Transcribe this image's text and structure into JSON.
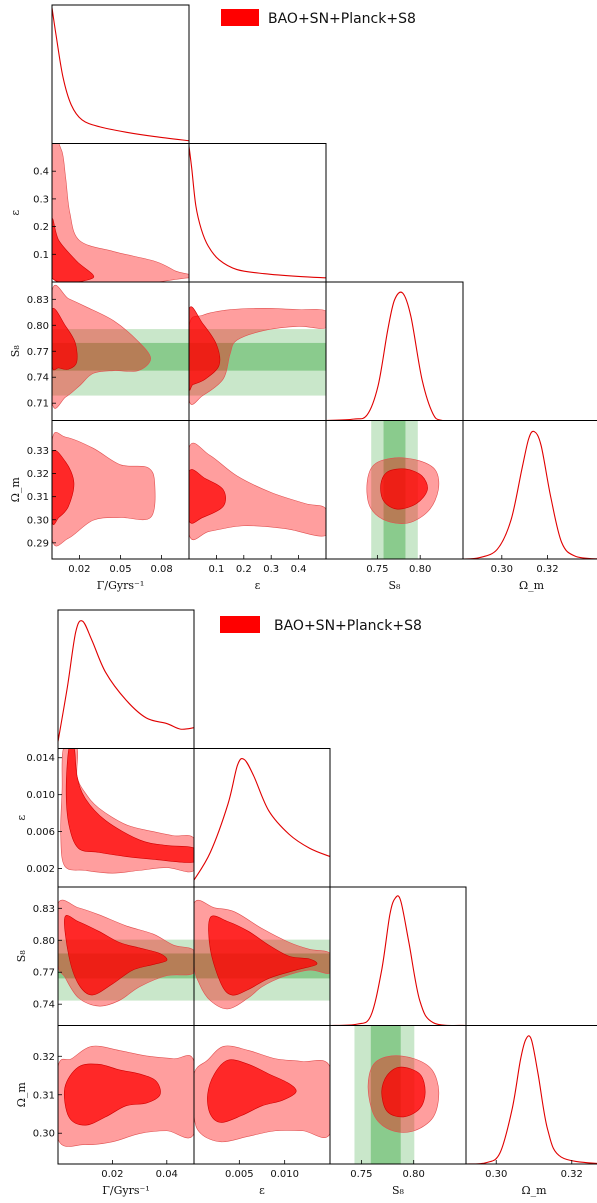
{
  "chart_data": [
    {
      "type": "corner",
      "legend": {
        "label": "BAO+SN+Planck+S8",
        "color": "#ff0000"
      },
      "parameters": [
        {
          "name": "Gamma",
          "label": "Γ/Gyrs⁻¹",
          "range": [
            0.0,
            0.1
          ],
          "ticks": [
            0.02,
            0.05,
            0.08
          ],
          "tick_labels": [
            "0.02",
            "0.05",
            "0.08"
          ]
        },
        {
          "name": "epsilon",
          "label": "ε",
          "range": [
            0.0,
            0.5
          ],
          "ticks": [
            0.1,
            0.2,
            0.3,
            0.4
          ],
          "tick_labels": [
            "0.1",
            "0.2",
            "0.3",
            "0.4"
          ]
        },
        {
          "name": "S8",
          "label": "S₈",
          "range": [
            0.69,
            0.85
          ],
          "ticks": [
            0.71,
            0.74,
            0.77,
            0.8,
            0.83
          ],
          "tick_labels": [
            "0.71",
            "0.74",
            "0.77",
            "0.80",
            "0.83"
          ]
        },
        {
          "name": "Omega_m",
          "label": "Ω_m",
          "range": [
            0.283,
            0.343
          ],
          "ticks": [
            0.29,
            0.3,
            0.31,
            0.32,
            0.33
          ],
          "tick_labels": [
            "0.29",
            "0.30",
            "0.31",
            "0.32",
            "0.33"
          ]
        }
      ],
      "s8_prior": {
        "mean": 0.766,
        "sigma1": [
          0.752,
          0.781
        ],
        "sigma2": [
          0.738,
          0.795
        ]
      },
      "bottom_tick_labels": [
        [
          "0.02",
          "0.05",
          "0.08"
        ],
        [
          "0.1",
          "0.2",
          "0.3",
          "0.4"
        ],
        [
          "0.75",
          "0.80"
        ],
        [
          "0.30",
          "0.32"
        ]
      ],
      "bottom_ticks": [
        [
          0.02,
          0.05,
          0.08
        ],
        [
          0.1,
          0.2,
          0.3,
          0.4
        ],
        [
          0.75,
          0.8
        ],
        [
          0.3,
          0.32
        ]
      ]
    },
    {
      "type": "corner",
      "legend": {
        "label": "BAO+SN+Planck+S8",
        "color": "#ff0000"
      },
      "parameters": [
        {
          "name": "Gamma",
          "label": "Γ/Gyrs⁻¹",
          "range": [
            0.0,
            0.05
          ],
          "ticks": [
            0.02,
            0.04
          ],
          "tick_labels": [
            "0.02",
            "0.04"
          ]
        },
        {
          "name": "epsilon",
          "label": "ε",
          "range": [
            0.0,
            0.015
          ],
          "ticks": [
            0.002,
            0.006,
            0.01,
            0.014
          ],
          "tick_labels": [
            "0.002",
            "0.006",
            "0.010",
            "0.014"
          ]
        },
        {
          "name": "S8",
          "label": "S₈",
          "range": [
            0.72,
            0.85
          ],
          "ticks": [
            0.74,
            0.77,
            0.8,
            0.83
          ],
          "tick_labels": [
            "0.74",
            "0.77",
            "0.80",
            "0.83"
          ]
        },
        {
          "name": "Omega_m",
          "label": "Ω_m",
          "range": [
            0.292,
            0.328
          ],
          "ticks": [
            0.3,
            0.31,
            0.32
          ],
          "tick_labels": [
            "0.30",
            "0.31",
            "0.32"
          ]
        }
      ],
      "s8_prior": {
        "mean": 0.766,
        "sigma1": [
          0.752,
          0.781
        ],
        "sigma2": [
          0.738,
          0.795
        ]
      },
      "bottom_tick_labels": [
        [
          "0.02",
          "0.04"
        ],
        [
          "0.005",
          "0.010"
        ],
        [
          "0.75",
          "0.80"
        ],
        [
          "0.30",
          "0.32"
        ]
      ],
      "bottom_ticks": [
        [
          0.02,
          0.04
        ],
        [
          0.005,
          0.01
        ],
        [
          0.75,
          0.8
        ],
        [
          0.3,
          0.32
        ]
      ]
    }
  ]
}
